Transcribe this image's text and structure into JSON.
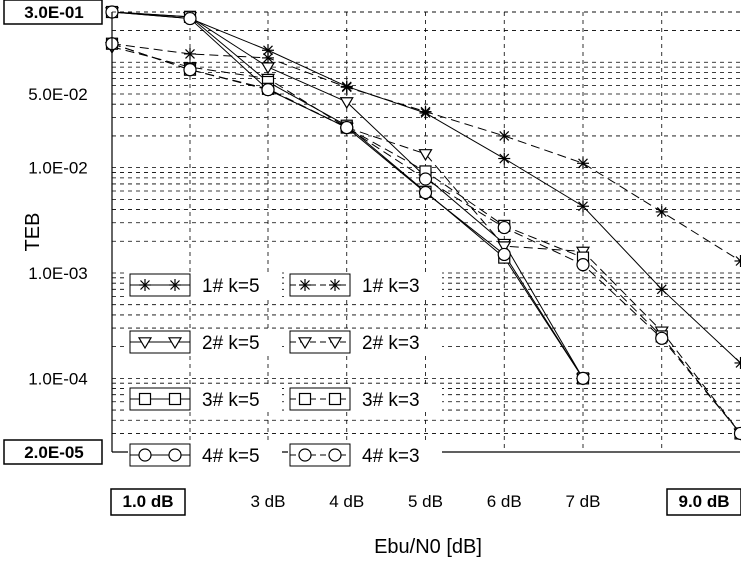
{
  "chart_data": {
    "type": "line",
    "title": "",
    "xlabel": "Ebu/N0 [dB]",
    "ylabel": "TEB",
    "xlim": [
      1,
      9
    ],
    "ylim": [
      2e-05,
      0.3
    ],
    "y_scale": "log",
    "grid": true,
    "legend_placement": "lower-left",
    "x_ticks": [
      {
        "value": 1,
        "label": "1.0 dB",
        "boxed": true
      },
      {
        "value": 3,
        "label": "3 dB",
        "boxed": false
      },
      {
        "value": 4,
        "label": "4 dB",
        "boxed": false
      },
      {
        "value": 5,
        "label": "5 dB",
        "boxed": false
      },
      {
        "value": 6,
        "label": "6 dB",
        "boxed": false
      },
      {
        "value": 7,
        "label": "7 dB",
        "boxed": false
      },
      {
        "value": 9,
        "label": "9.0 dB",
        "boxed": true
      }
    ],
    "y_ticks": [
      {
        "value": 0.3,
        "label": "3.0E-01",
        "boxed": true
      },
      {
        "value": 0.05,
        "label": "5.0E-02",
        "boxed": false
      },
      {
        "value": 0.01,
        "label": "1.0E-02",
        "boxed": false
      },
      {
        "value": 0.001,
        "label": "1.0E-03",
        "boxed": false
      },
      {
        "value": 0.0001,
        "label": "1.0E-04",
        "boxed": false
      },
      {
        "value": 2e-05,
        "label": "2.0E-05",
        "boxed": true
      }
    ],
    "series": [
      {
        "name": "1# k=5",
        "marker": "star",
        "dash": "solid",
        "x": [
          1,
          2,
          3,
          4,
          5,
          6,
          7,
          8,
          9
        ],
        "y": [
          0.3,
          0.26,
          0.13,
          0.059,
          0.033,
          0.0122,
          0.0043,
          0.0007,
          0.00014
        ]
      },
      {
        "name": "1# k=3",
        "marker": "star",
        "dash": "dashed",
        "x": [
          1,
          2,
          3,
          4,
          5,
          6,
          7,
          8,
          9
        ],
        "y": [
          0.15,
          0.12,
          0.11,
          0.058,
          0.034,
          0.02,
          0.011,
          0.0038,
          0.0013
        ]
      },
      {
        "name": "2# k=5",
        "marker": "triangle",
        "dash": "solid",
        "x": [
          1,
          2,
          3,
          4,
          5,
          6,
          7
        ],
        "y": [
          0.3,
          0.27,
          0.09,
          0.042,
          0.0082,
          0.0019,
          0.0001
        ]
      },
      {
        "name": "2# k=3",
        "marker": "triangle",
        "dash": "dashed",
        "x": [
          1,
          2,
          3,
          4,
          5,
          6,
          7,
          8,
          9
        ],
        "y": [
          0.14,
          0.09,
          0.07,
          0.024,
          0.0135,
          0.0018,
          0.0016,
          0.00028,
          3e-05
        ]
      },
      {
        "name": "3# k=5",
        "marker": "square",
        "dash": "solid",
        "x": [
          1,
          2,
          3,
          4,
          5,
          6,
          7
        ],
        "y": [
          0.3,
          0.27,
          0.065,
          0.025,
          0.0059,
          0.0014,
          0.0001
        ]
      },
      {
        "name": "3# k=3",
        "marker": "square",
        "dash": "dashed",
        "x": [
          1,
          2,
          3,
          4,
          5,
          6,
          7,
          8,
          9
        ],
        "y": [
          0.15,
          0.085,
          0.056,
          0.024,
          0.0092,
          0.0028,
          0.0014,
          0.00025,
          3e-05
        ]
      },
      {
        "name": "4# k=5",
        "marker": "circle",
        "dash": "solid",
        "x": [
          1,
          2,
          3,
          4,
          5,
          6,
          7
        ],
        "y": [
          0.3,
          0.26,
          0.055,
          0.024,
          0.0058,
          0.0015,
          0.0001
        ]
      },
      {
        "name": "4# k=3",
        "marker": "circle",
        "dash": "dashed",
        "x": [
          1,
          2,
          3,
          4,
          5,
          6,
          7,
          8,
          9
        ],
        "y": [
          0.15,
          0.085,
          0.055,
          0.024,
          0.0078,
          0.0027,
          0.0012,
          0.00024,
          3e-05
        ]
      }
    ],
    "legend": [
      {
        "series": 0,
        "label": "1# k=5"
      },
      {
        "series": 1,
        "label": "1# k=3"
      },
      {
        "series": 2,
        "label": "2# k=5"
      },
      {
        "series": 3,
        "label": "2# k=3"
      },
      {
        "series": 4,
        "label": "3# k=5"
      },
      {
        "series": 5,
        "label": "3# k=3"
      },
      {
        "series": 6,
        "label": "4# k=5"
      },
      {
        "series": 7,
        "label": "4# k=3"
      }
    ],
    "colors": {
      "line": "#000000",
      "grid": "#000000",
      "background": "#ffffff"
    }
  }
}
